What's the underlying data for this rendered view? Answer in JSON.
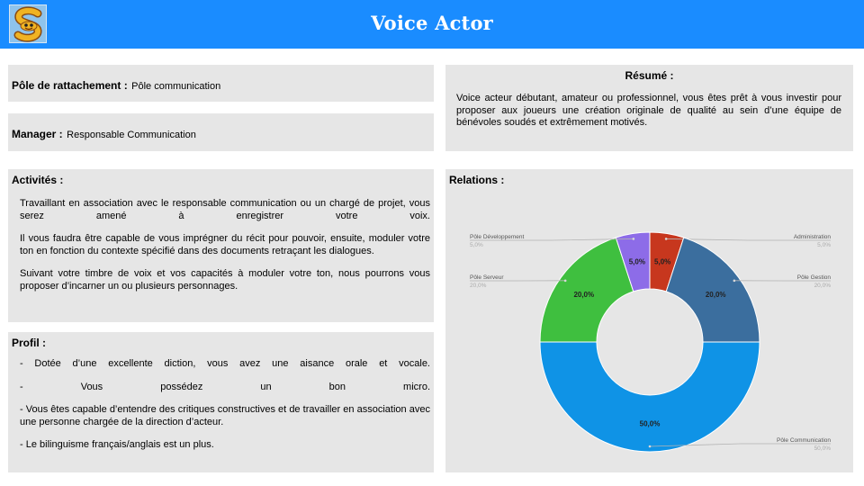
{
  "header": {
    "title": "Voice Actor",
    "logo_icon": "s-mascot-logo-icon",
    "color": "#1a8cff"
  },
  "pole": {
    "label": "Pôle de rattachement :",
    "value": "Pôle communication"
  },
  "manager": {
    "label": "Manager :",
    "value": "Responsable Communication"
  },
  "resume": {
    "title": "Résumé :",
    "text": "Voice acteur débutant, amateur ou professionnel, vous êtes prêt à vous investir pour proposer aux joueurs une création originale de qualité au sein d’une équipe de bénévoles soudés et extrêmement motivés."
  },
  "activites": {
    "title": "Activités :",
    "paragraphs": [
      "Travaillant en association avec le responsable communication ou un chargé de projet, vous serez amené à enregistrer votre voix.",
      "Il vous faudra être capable de vous imprégner du récit pour pouvoir, ensuite, moduler votre ton en fonction du contexte spécifié dans des documents retraçant les dialogues.",
      "Suivant votre timbre de voix et vos capacités à moduler votre ton, nous pourrons vous proposer d’incarner un ou plusieurs personnages."
    ]
  },
  "profil": {
    "title": "Profil :",
    "items": [
      "- Dotée d’une excellente diction, vous avez une aisance orale et vocale.",
      "- Vous possédez un bon micro.",
      "- Vous êtes capable d’entendre des critiques constructives et de travailler en association avec une personne chargée de la direction d’acteur.",
      "- Le bilinguisme français/anglais est un plus."
    ]
  },
  "relations": {
    "title": "Relations :"
  },
  "chart_data": {
    "type": "pie",
    "donut": true,
    "categories": [
      "Administration",
      "Pôle Gestion",
      "Pôle Communication",
      "Pôle Serveur",
      "Pôle Développement"
    ],
    "values": [
      5.0,
      20.0,
      50.0,
      20.0,
      5.0
    ],
    "labels": [
      "5,0%",
      "20,0%",
      "50,0%",
      "20,0%",
      "5,0%"
    ],
    "colors": [
      "#c7371e",
      "#3b6e9e",
      "#0f93e6",
      "#3fbf3f",
      "#8d6ce8"
    ],
    "start_angle_deg": 0,
    "direction": "clockwise",
    "legend": "callouts-outside"
  }
}
